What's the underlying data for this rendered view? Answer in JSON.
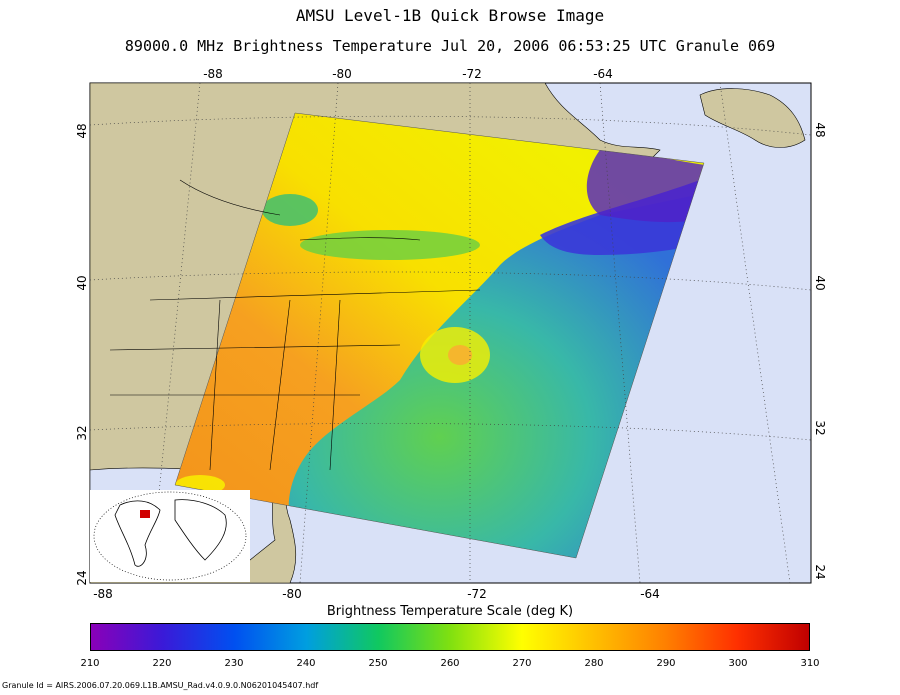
{
  "title": "AMSU Level-1B Quick Browse Image",
  "subtitle": "89000.0 MHz Brightness Temperature   Jul 20, 2006 06:53:25 UTC  Granule 069",
  "top_lon_labels": [
    "-88",
    "-80",
    "-72",
    "-64"
  ],
  "bottom_lon_labels": [
    "-88",
    "-80",
    "-72",
    "-64"
  ],
  "left_lat_labels": [
    "48",
    "40",
    "32",
    "24"
  ],
  "right_lat_labels": [
    "48",
    "40",
    "32",
    "24"
  ],
  "colorbar": {
    "title": "Brightness Temperature Scale (deg K)",
    "labels": [
      "210",
      "220",
      "230",
      "240",
      "250",
      "260",
      "270",
      "280",
      "290",
      "300",
      "310"
    ],
    "range": [
      210,
      310
    ],
    "stops": [
      "#8a00b8",
      "#3a1ad8",
      "#0050f0",
      "#009ee0",
      "#10c860",
      "#80e010",
      "#ffff00",
      "#ffc000",
      "#ff8000",
      "#ff3000",
      "#c00000"
    ]
  },
  "colors": {
    "ocean": "#d9e1f7",
    "land": "#cfc7a0",
    "warm_land": "#f39a1a",
    "yellow": "#f8f000",
    "green": "#4cc84a",
    "blue": "#2a50e8",
    "purple": "#6a20c8"
  },
  "granule_id": "Granule Id = AIRS.2006.07.20.069.L1B.AMSU_Rad.v4.0.9.0.N06201045407.hdf"
}
